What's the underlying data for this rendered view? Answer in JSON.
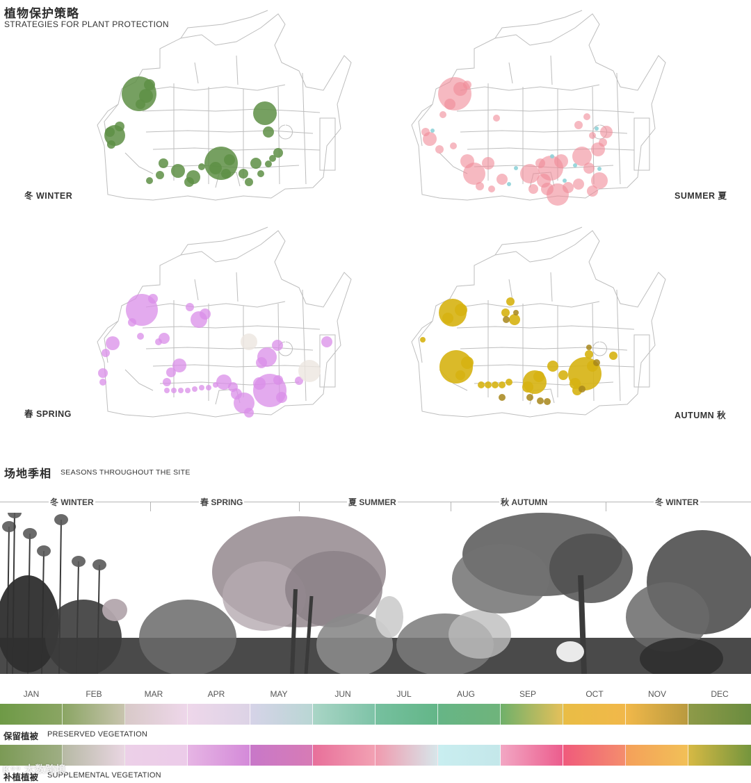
{
  "header": {
    "title_cn": "植物保护策略",
    "title_en": "STRATEGIES FOR PLANT PROTECTION"
  },
  "maps": {
    "winter_label": "冬 WINTER",
    "summer_label": "SUMMER 夏",
    "spring_label": "春 SPRING",
    "autumn_label": "AUTUMN 秋",
    "colors": {
      "winter": "#5e8f45",
      "summer": "#f08a98",
      "summer_accent": "#8fd3d8",
      "spring": "#d98ee8",
      "autumn": "#d6b312",
      "autumn_dark": "#a7861a"
    }
  },
  "section2": {
    "title_cn": "场地季相",
    "title_en": "SEASONS THROUGHOUT THE SITE"
  },
  "seasons_bar": [
    "冬 WINTER",
    "春 SPRING",
    "夏 SUMMER",
    "秋 AUTUMN",
    "冬 WINTER"
  ],
  "months": [
    "JAN",
    "FEB",
    "MAR",
    "APR",
    "MAY",
    "JUN",
    "JUL",
    "AUG",
    "SEP",
    "OCT",
    "NOV",
    "DEC"
  ],
  "preserved": {
    "label_cn": "保留植被",
    "label_en": "PRESERVED VEGETATION",
    "gradients": [
      [
        "#6e9a46",
        "#8aa563"
      ],
      [
        "#8aa563",
        "#c8c4ae"
      ],
      [
        "#d8c9c8",
        "#eed7ea"
      ],
      [
        "#eed7ea",
        "#dcd3e6"
      ],
      [
        "#d6d3e8",
        "#b9d6d4"
      ],
      [
        "#a9d5c6",
        "#7ec3a7"
      ],
      [
        "#76c09f",
        "#63b688"
      ],
      [
        "#66b586",
        "#6fb47b"
      ],
      [
        "#6fb06a",
        "#e4c05a"
      ],
      [
        "#e9bd45",
        "#f1b84a"
      ],
      [
        "#f1b84a",
        "#b99a3f"
      ],
      [
        "#8e9a48",
        "#6a8c3f"
      ]
    ]
  },
  "supplemental": {
    "label_cn": "补植植被",
    "label_en": "SUPPLEMENTAL VEGETATION",
    "gradients": [
      [
        "#7b9a55",
        "#9fae84"
      ],
      [
        "#b6b9a4",
        "#e9d6e2"
      ],
      [
        "#ecd0e8",
        "#eccbe9"
      ],
      [
        "#e6b5e4",
        "#d48ad9"
      ],
      [
        "#c878c9",
        "#d77bb5"
      ],
      [
        "#e86f9a",
        "#f2a1b3"
      ],
      [
        "#f09aae",
        "#d7e6ea"
      ],
      [
        "#c9eef0",
        "#c4e7ea"
      ],
      [
        "#f2a7c4",
        "#ec5d8d"
      ],
      [
        "#f05a7c",
        "#f48d6d"
      ],
      [
        "#f4a05a",
        "#f2c057"
      ],
      [
        "#d7b944",
        "#74953d"
      ]
    ]
  },
  "watermark": "K⁹⁹ 大数跨境"
}
